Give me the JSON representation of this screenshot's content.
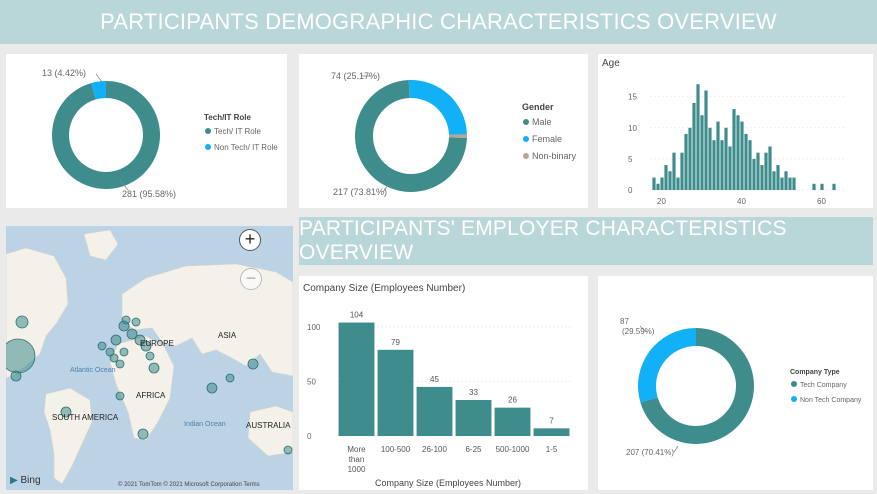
{
  "colors": {
    "teal": "#3f8c8c",
    "cyan": "#12b0f6",
    "tan": "#b9a58c",
    "banner": "#b9d6d8"
  },
  "top_banner": {
    "title": "PARTICIPANTS DEMOGRAPHIC CHARACTERISTICS OVERVIEW"
  },
  "mid_banner": {
    "title": "PARTICIPANTS' EMPLOYER CHARACTERISTICS OVERVIEW"
  },
  "map": {
    "labels": {
      "europe": "EUROPE",
      "asia": "ASIA",
      "africa": "AFRICA",
      "south_america": "SOUTH AMERICA",
      "australia": "AUSTRALIA",
      "atlantic": "Atlantic Ocean",
      "indian": "Indian Ocean"
    },
    "zoom_in": "+",
    "zoom_out": "−",
    "bing": "Bing",
    "copyright": "© 2021 TomTom © 2021 Microsoft Corporation Terms"
  },
  "chart_data": [
    {
      "type": "pie",
      "variant": "donut",
      "legend_title": "Tech/IT Role",
      "slices": [
        {
          "label": "Tech/ IT Role",
          "value": 281,
          "percent": 95.58,
          "color": "#3f8c8c",
          "data_label": "281 (95.58%)"
        },
        {
          "label": "Non Tech/ IT Role",
          "value": 13,
          "percent": 4.42,
          "color": "#12b0f6",
          "data_label": "13 (4.42%)"
        }
      ]
    },
    {
      "type": "pie",
      "variant": "donut",
      "legend_title": "Gender",
      "slices": [
        {
          "label": "Male",
          "value": 217,
          "percent": 73.81,
          "color": "#3f8c8c",
          "data_label": "217 (73.81%)"
        },
        {
          "label": "Female",
          "value": 74,
          "percent": 25.17,
          "color": "#12b0f6",
          "data_label": "74 (25.17%)"
        },
        {
          "label": "Non-binary",
          "value": 3,
          "percent": 1.02,
          "color": "#b9a58c",
          "data_label": ""
        }
      ]
    },
    {
      "type": "bar",
      "variant": "histogram",
      "title": "Age",
      "x": [
        18,
        19,
        20,
        21,
        22,
        23,
        24,
        25,
        26,
        27,
        28,
        29,
        30,
        31,
        32,
        33,
        34,
        35,
        36,
        37,
        38,
        39,
        40,
        41,
        42,
        43,
        44,
        45,
        46,
        47,
        48,
        49,
        50,
        51,
        52,
        53,
        54,
        55,
        56,
        57,
        58,
        59,
        60,
        61,
        62,
        63
      ],
      "values": [
        2,
        1,
        2,
        4,
        3,
        6,
        2,
        6,
        9,
        10,
        14,
        17,
        12,
        16,
        10,
        8,
        11,
        8,
        10,
        7,
        13,
        12,
        11,
        9,
        8,
        5,
        6,
        4,
        6,
        7,
        3,
        4,
        2,
        3,
        2,
        2,
        0,
        0,
        0,
        0,
        1,
        0,
        1,
        0,
        0,
        1
      ],
      "yticks": [
        0,
        5,
        10,
        15
      ],
      "xticks": [
        20,
        40,
        60
      ],
      "ylim": [
        0,
        18
      ],
      "xlim": [
        17,
        66
      ]
    },
    {
      "type": "bar",
      "title": "Company Size (Employees Number)",
      "xlabel": "Company Size (Employees Number)",
      "ylabel": "",
      "categories": [
        "More than 1000",
        "100-500",
        "26-100",
        "6-25",
        "500-1000",
        "1-5"
      ],
      "category_lines": [
        [
          "More",
          "than",
          "1000"
        ],
        [
          "100-500"
        ],
        [
          "26-100"
        ],
        [
          "6-25"
        ],
        [
          "500-1000"
        ],
        [
          "1-5"
        ]
      ],
      "values": [
        104,
        79,
        45,
        33,
        26,
        7
      ],
      "yticks": [
        0,
        50,
        100
      ],
      "ylim": [
        0,
        110
      ]
    },
    {
      "type": "pie",
      "variant": "donut",
      "legend_title": "Company Type",
      "slices": [
        {
          "label": "Tech Company",
          "value": 207,
          "percent": 70.41,
          "color": "#3f8c8c",
          "data_label": "207 (70.41%)"
        },
        {
          "label": "Non Tech Company",
          "value": 87,
          "percent": 29.59,
          "color": "#12b0f6",
          "data_label": "87 (29.59%)"
        }
      ]
    }
  ]
}
